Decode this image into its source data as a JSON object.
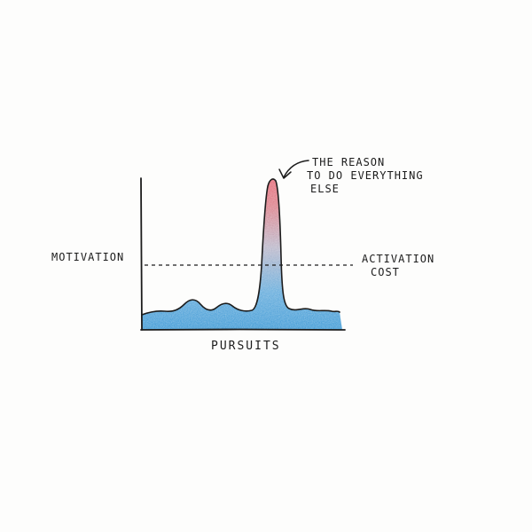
{
  "diagram": {
    "y_axis_label": "MOTIVATION",
    "x_axis_label": "PURSUITS",
    "threshold_label_line1": "ACTIVATION",
    "threshold_label_line2": "COST",
    "annotation_line1": "THE REASON",
    "annotation_line2": "TO DO EVERYTHING",
    "annotation_line3": "ELSE",
    "colors": {
      "ink": "#1c1c1c",
      "low_fill": "#3c9ad6",
      "peak_fill": "#e0606f",
      "mid_fill": "#b7b2c6"
    }
  }
}
